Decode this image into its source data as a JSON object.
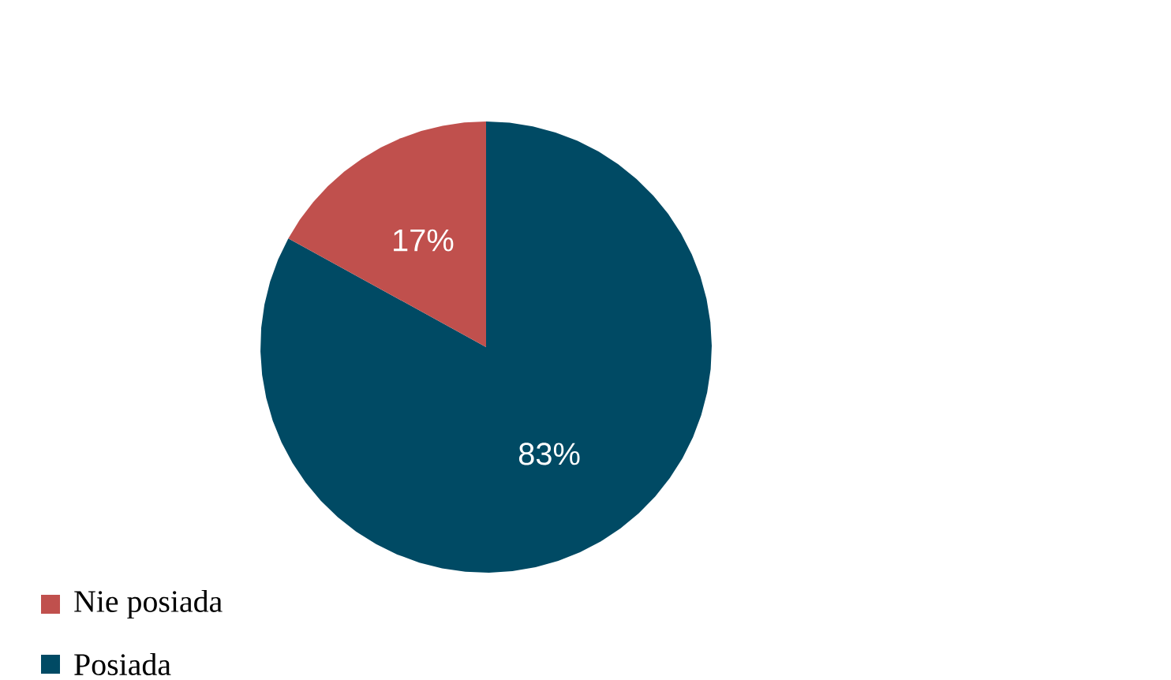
{
  "chart_data": {
    "type": "pie",
    "categories": [
      "Nie posiada",
      "Posiada"
    ],
    "values": [
      17,
      83
    ],
    "value_labels": [
      "17%",
      "83%"
    ],
    "colors": [
      "#c0504d",
      "#004a64"
    ],
    "legend": "bottom left"
  }
}
